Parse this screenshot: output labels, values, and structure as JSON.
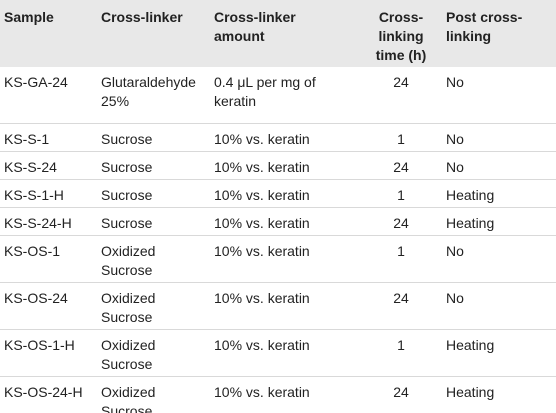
{
  "table": {
    "headers": [
      "Sample",
      "Cross-linker",
      "Cross-linker amount",
      "Cross-linking time (h)",
      "Post cross-linking"
    ],
    "rows": [
      [
        "KS-GA-24",
        "Glutaraldehyde 25%",
        "0.4 μL per mg of keratin",
        "24",
        "No"
      ],
      [
        "KS-S-1",
        "Sucrose",
        "10% vs. keratin",
        "1",
        "No"
      ],
      [
        "KS-S-24",
        "Sucrose",
        "10% vs. keratin",
        "24",
        "No"
      ],
      [
        "KS-S-1-H",
        "Sucrose",
        "10% vs. keratin",
        "1",
        "Heating"
      ],
      [
        "KS-S-24-H",
        "Sucrose",
        "10% vs. keratin",
        "24",
        "Heating"
      ],
      [
        "KS-OS-1",
        "Oxidized Sucrose",
        "10% vs. keratin",
        "1",
        "No"
      ],
      [
        "KS-OS-24",
        "Oxidized Sucrose",
        "10% vs. keratin",
        "24",
        "No"
      ],
      [
        "KS-OS-1-H",
        "Oxidized Sucrose",
        "10% vs. keratin",
        "1",
        "Heating"
      ],
      [
        "KS-OS-24-H",
        "Oxidized Sucrose",
        "10% vs. keratin",
        "24",
        "Heating"
      ]
    ]
  }
}
